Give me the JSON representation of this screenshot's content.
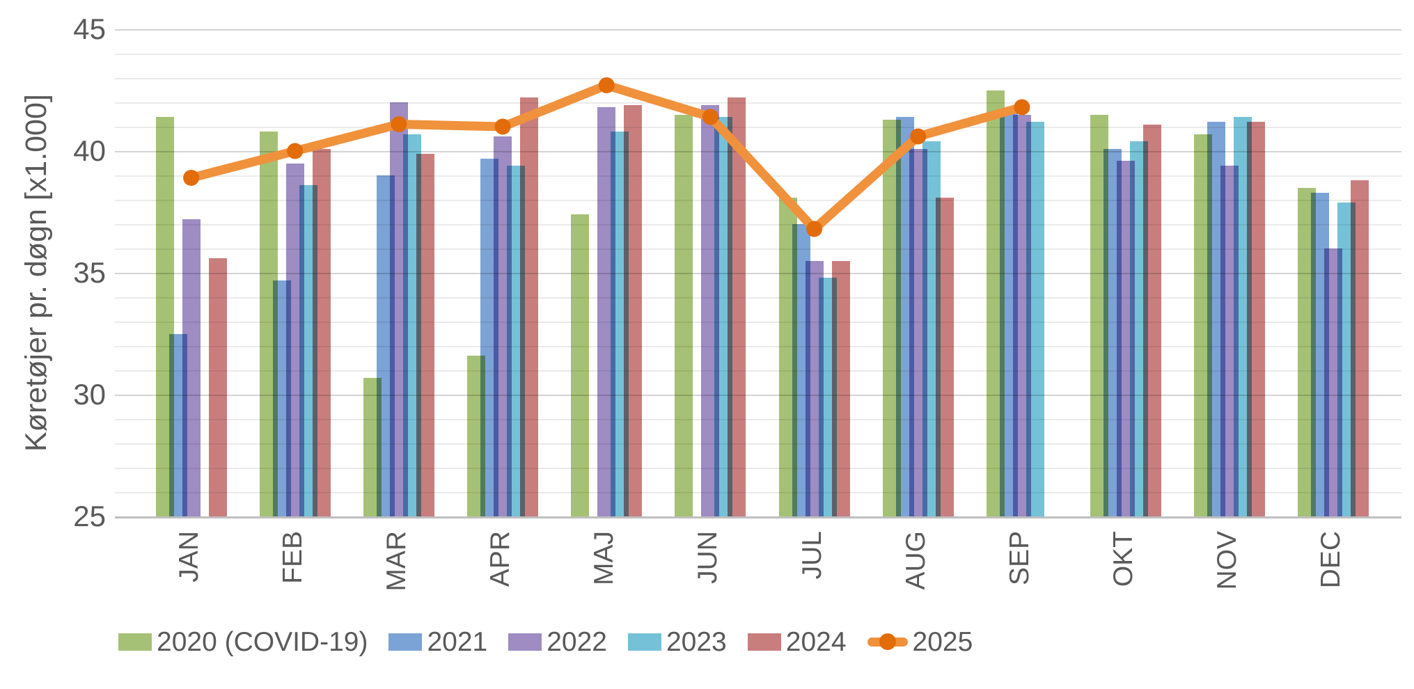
{
  "chart_data": {
    "type": "bar+line",
    "title": "",
    "ylabel": "Køretøjer pr. døgn [x1.000]",
    "xlabel": "",
    "x_categories": [
      "JAN",
      "FEB",
      "MAR",
      "APR",
      "MAJ",
      "JUN",
      "JUL",
      "AUG",
      "SEP",
      "OKT",
      "NOV",
      "DEC"
    ],
    "y_axis": {
      "min": 25,
      "max": 45,
      "minor_step": 1,
      "major_step": 5,
      "tick_labels": [
        "25",
        "30",
        "35",
        "40",
        "45"
      ]
    },
    "grid": true,
    "legend_position": "bottom",
    "series": [
      {
        "name": "2020 (COVID-19)",
        "type": "bar",
        "color": "#a5c175",
        "values": [
          41.4,
          40.8,
          30.7,
          31.6,
          37.4,
          41.5,
          38.1,
          41.3,
          42.5,
          41.5,
          40.7,
          38.5
        ]
      },
      {
        "name": "2021",
        "type": "bar",
        "color": "#7ca3d6",
        "values": [
          32.5,
          34.7,
          39.0,
          39.7,
          null,
          null,
          37.0,
          41.4,
          41.6,
          40.1,
          41.2,
          38.3
        ]
      },
      {
        "name": "2022",
        "type": "bar",
        "color": "#9e8cc3",
        "values": [
          37.2,
          39.5,
          42.0,
          40.6,
          41.8,
          41.9,
          35.5,
          40.1,
          41.5,
          39.6,
          39.4,
          36.0
        ]
      },
      {
        "name": "2023",
        "type": "bar",
        "color": "#75c2d8",
        "values": [
          null,
          38.6,
          40.7,
          39.4,
          40.8,
          41.4,
          34.8,
          40.4,
          41.2,
          40.4,
          41.4,
          37.9
        ]
      },
      {
        "name": "2024",
        "type": "bar",
        "color": "#c97e7e",
        "values": [
          35.6,
          40.1,
          39.9,
          42.2,
          41.9,
          42.2,
          35.5,
          38.1,
          null,
          41.1,
          41.2,
          38.8
        ]
      },
      {
        "name": "2025",
        "type": "line",
        "color": "#f0913c",
        "marker_color": "#e26b0a",
        "values": [
          38.9,
          40.0,
          41.1,
          41.0,
          42.7,
          41.4,
          36.8,
          40.6,
          41.8,
          null,
          null,
          null
        ]
      }
    ]
  },
  "colors": {
    "text": "#595959",
    "grid_minor": "#ebebeb",
    "grid_major": "#d4d4d4",
    "axis_line": "#bfbfbf",
    "background": "#ffffff"
  }
}
